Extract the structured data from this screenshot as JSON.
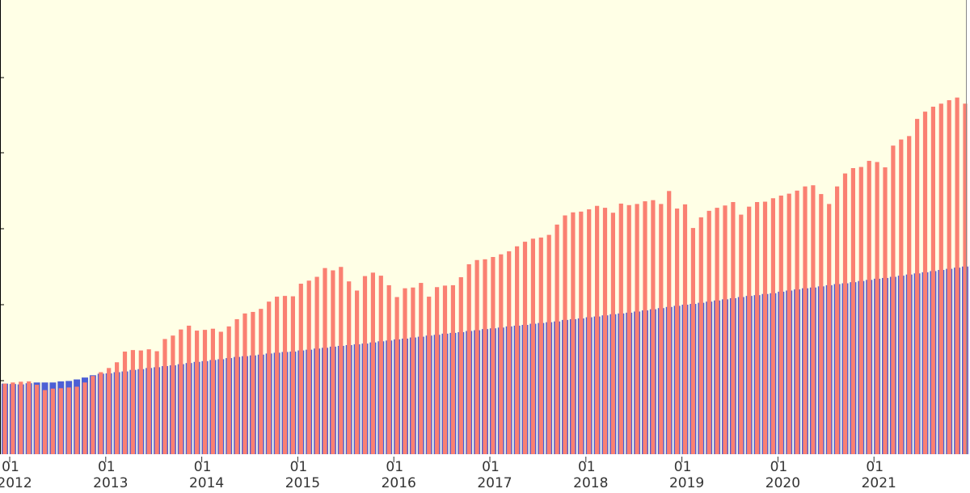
{
  "chart_data": {
    "type": "bar",
    "title": "",
    "xlabel": "",
    "ylabel": "",
    "ylim": [
      0,
      100
    ],
    "grid": false,
    "legend": "none",
    "x_start": "2012-01",
    "month_tick_label": "01",
    "year_tick_labels": [
      "2012",
      "2013",
      "2014",
      "2015",
      "2016",
      "2017",
      "2018",
      "2019",
      "2020",
      "2021"
    ],
    "colors": {
      "plot_background": "#FFFFE6",
      "series_a": "#FA8072",
      "series_b": "#4C5FD5",
      "latest_a": "#FF0000",
      "latest_b": "#0000C8",
      "axis": "#000000"
    },
    "series": [
      {
        "values": [
          18.5,
          18.8,
          19,
          19.1,
          18.2,
          16.8,
          17.2,
          17.3,
          17.5,
          17.7,
          18.8,
          20.5,
          21.5,
          22.6,
          24.1,
          26.9,
          27.3,
          27.2,
          27.5,
          27,
          30.2,
          31.1,
          32.7,
          33.7,
          32.4,
          32.6,
          32.9,
          32.1,
          33.5,
          35.4,
          36.9,
          37.3,
          38.1,
          40,
          41.3,
          41.5,
          41.4,
          44.7,
          45.5,
          46.5,
          48.8,
          48.2,
          49.1,
          45.3,
          42.9,
          46.7,
          47.6,
          46.8,
          44.3,
          41.2,
          43.5,
          43.7,
          44.9,
          41.3,
          43.8,
          44.2,
          44.3,
          46.4,
          49.8,
          50.9,
          51.1,
          51.7,
          52.4,
          53.2,
          54.5,
          55.7,
          56.5,
          56.8,
          57.5,
          60.2,
          62.6,
          63.4,
          63.6,
          64.2,
          65.1,
          64.6,
          63.3,
          65.7,
          65.3,
          65.6,
          66.3,
          66.6,
          65.6,
          69,
          64.4,
          65.5,
          59.3,
          62.1,
          63.8,
          64.6,
          65.2,
          66.1,
          62.8,
          64.9,
          66.1,
          66.2,
          67.1,
          67.8,
          68.3,
          69.1,
          70.2,
          70.5,
          68.2,
          65.6,
          70.2,
          73.6,
          75,
          75.3,
          76.9,
          76.6,
          75.2,
          80.9,
          82.5,
          83.4,
          87.9,
          89.8,
          91.1,
          91.9,
          92.8,
          93.5,
          91.9,
          93.7,
          96.6,
          97.9,
          99.3,
          100
        ]
      },
      {
        "values": [
          18.5,
          18.4,
          18.3,
          18.6,
          18.8,
          18.8,
          18.8,
          19.1,
          19.2,
          19.6,
          20.1,
          20.7,
          21.1,
          21.2,
          21.5,
          21.7,
          22.1,
          22.3,
          22.6,
          22.8,
          23.1,
          23.3,
          23.6,
          23.9,
          24.2,
          24.4,
          24.7,
          24.9,
          25.2,
          25.5,
          25.7,
          25.9,
          26.1,
          26.4,
          26.6,
          26.8,
          26.9,
          27.2,
          27.4,
          27.7,
          27.9,
          28.2,
          28.4,
          28.6,
          28.8,
          29,
          29.3,
          29.6,
          29.8,
          30.1,
          30.3,
          30.6,
          30.8,
          31.1,
          31.3,
          31.6,
          31.8,
          32,
          32.3,
          32.5,
          32.8,
          33,
          33.2,
          33.5,
          33.7,
          33.9,
          34.2,
          34.4,
          34.6,
          34.8,
          35.2,
          35.4,
          35.6,
          35.9,
          36.1,
          36.4,
          36.7,
          36.9,
          37.1,
          37.4,
          37.7,
          38,
          38.3,
          38.6,
          38.9,
          39.2,
          39.4,
          39.7,
          40,
          40.3,
          40.6,
          40.9,
          41.2,
          41.5,
          41.7,
          42,
          42.2,
          42.6,
          42.9,
          43.2,
          43.5,
          43.7,
          44,
          44.3,
          44.6,
          44.8,
          45.1,
          45.4,
          45.7,
          46,
          46.2,
          46.5,
          46.8,
          47.1,
          47.4,
          47.7,
          48,
          48.3,
          48.6,
          48.9,
          49.2,
          49.5,
          49.9,
          50.2,
          50.6,
          51
        ]
      }
    ]
  }
}
